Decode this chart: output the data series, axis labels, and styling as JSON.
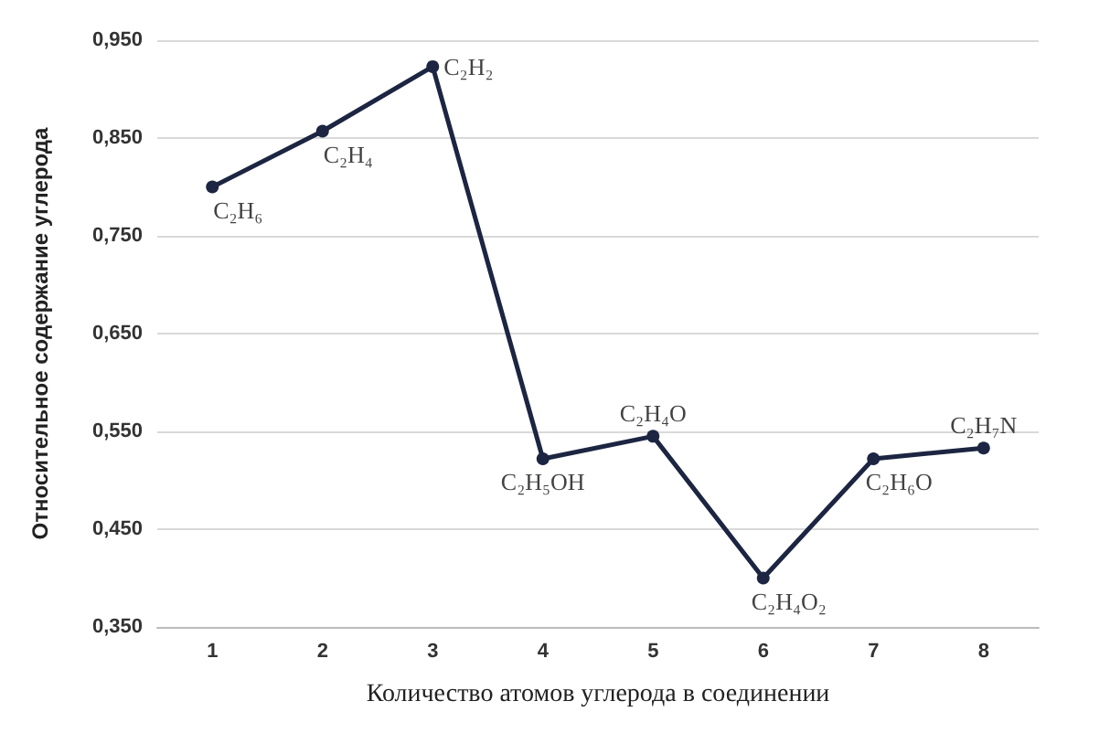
{
  "chart_data": {
    "type": "line",
    "xlabel": "Количество атомов углерода в соединении",
    "ylabel": "Относительное содержание углерода",
    "categories": [
      "1",
      "2",
      "3",
      "4",
      "5",
      "6",
      "7",
      "8"
    ],
    "series": [
      {
        "color": "#1c2541",
        "values": [
          0.8,
          0.857,
          0.923,
          0.522,
          0.545,
          0.4,
          0.522,
          0.533
        ]
      }
    ],
    "ylim": [
      0.35,
      0.95
    ],
    "yticks": [
      {
        "value": 0.35,
        "label": "0,350"
      },
      {
        "value": 0.45,
        "label": "0,450"
      },
      {
        "value": 0.55,
        "label": "0,550"
      },
      {
        "value": 0.65,
        "label": "0,650"
      },
      {
        "value": 0.75,
        "label": "0,750"
      },
      {
        "value": 0.85,
        "label": "0,850"
      },
      {
        "value": 0.95,
        "label": "0,950"
      }
    ],
    "grid": "y",
    "marker": "circle",
    "line_style": "solid",
    "annotations": [
      {
        "text": "C₂H₆",
        "x": "1",
        "y": 0.8
      },
      {
        "text": "C₂H₄",
        "x": "2",
        "y": 0.857
      },
      {
        "text": "C₂H₂",
        "x": "3",
        "y": 0.923
      },
      {
        "text": "C₂H₅OH",
        "x": "4",
        "y": 0.522
      },
      {
        "text": "C₂H₄O",
        "x": "5",
        "y": 0.545
      },
      {
        "text": "C₂H₄O₂",
        "x": "6",
        "y": 0.4
      },
      {
        "text": "C₂H₆O",
        "x": "7",
        "y": 0.522
      },
      {
        "text": "C₂H₇N",
        "x": "8",
        "y": 0.533
      }
    ]
  }
}
